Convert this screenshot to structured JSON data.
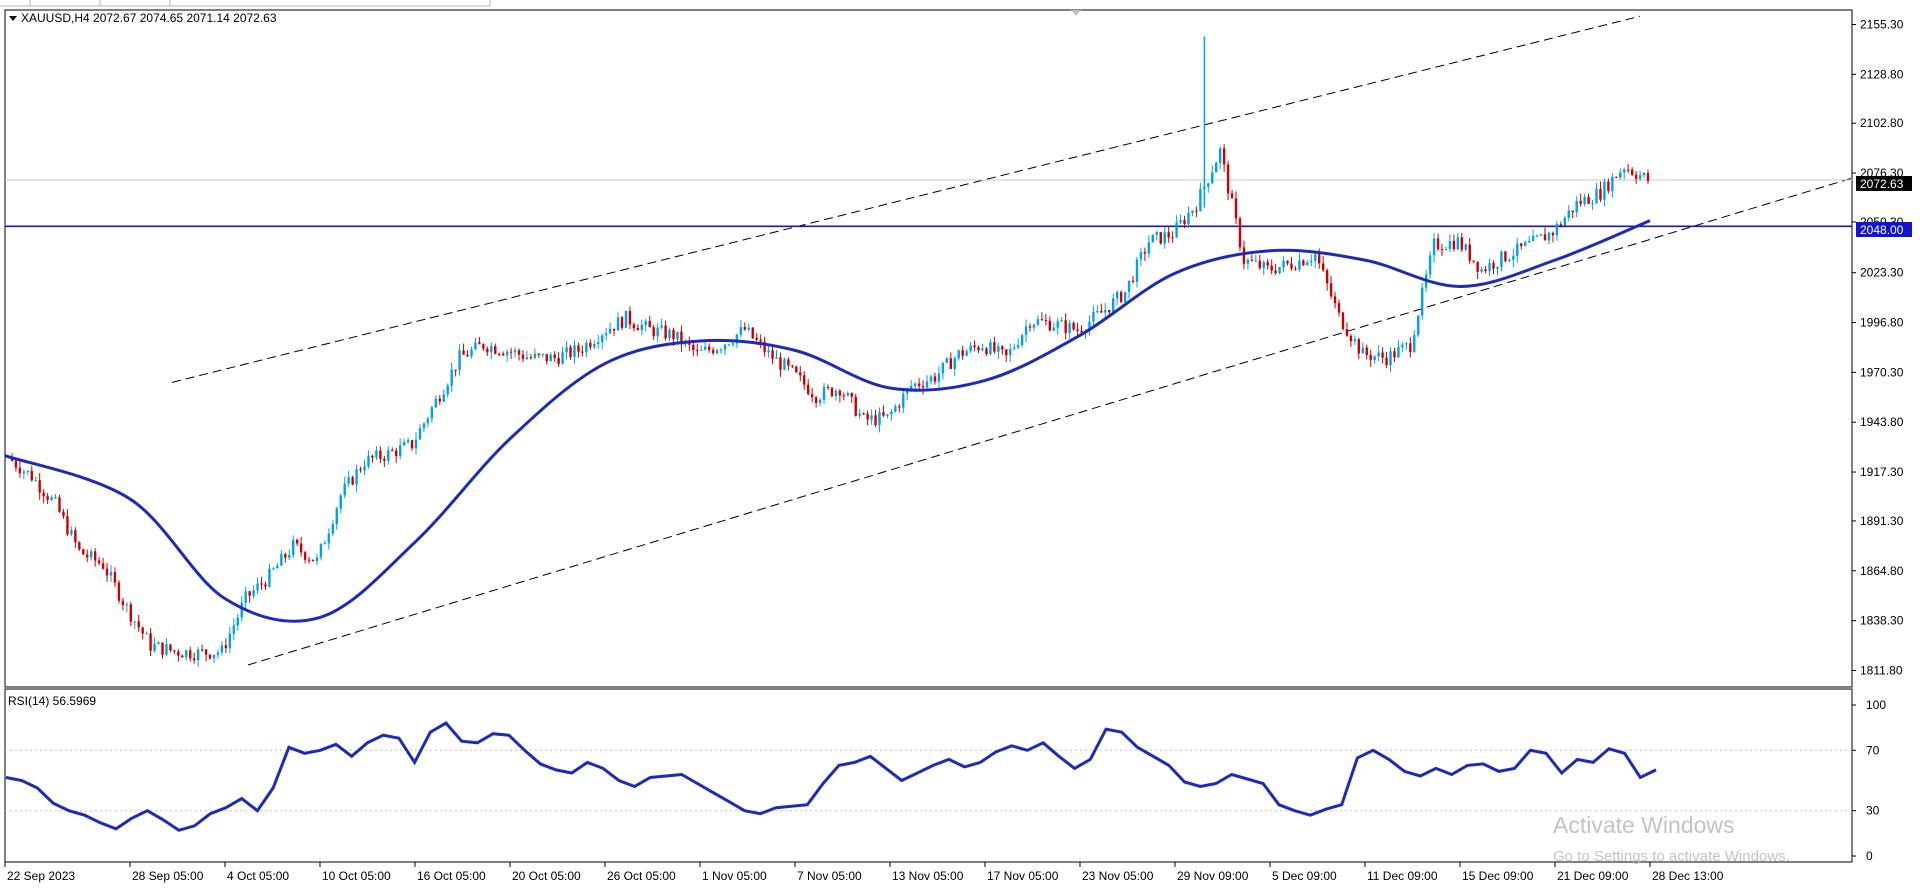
{
  "window": {
    "symbol_header": "XAUUSD,H4  2072.67 2074.65 2071.14 2072.63",
    "rsi_header": "RSI(14) 56.5969"
  },
  "price_axis": {
    "ticks": [
      "2155.30",
      "2128.80",
      "2102.80",
      "2076.30",
      "2050.30",
      "2023.30",
      "1996.80",
      "1970.30",
      "1943.80",
      "1917.30",
      "1891.30",
      "1864.80",
      "1838.30",
      "1811.80"
    ],
    "current_price_label": "2072.63",
    "level_label": "2048.00"
  },
  "rsi_axis": {
    "ticks": [
      "100",
      "70",
      "30",
      "0"
    ]
  },
  "time_axis": {
    "labels": [
      "22 Sep 2023",
      "28 Sep 05:00",
      "4 Oct 05:00",
      "10 Oct 05:00",
      "16 Oct 05:00",
      "20 Oct 05:00",
      "26 Oct 05:00",
      "1 Nov 05:00",
      "7 Nov 05:00",
      "13 Nov 05:00",
      "17 Nov 05:00",
      "23 Nov 05:00",
      "29 Nov 09:00",
      "5 Dec 09:00",
      "11 Dec 09:00",
      "15 Dec 09:00",
      "21 Dec 09:00",
      "28 Dec 13:00"
    ]
  },
  "watermark": {
    "line1": "Activate Windows",
    "line2": "Go to Settings to activate Windows."
  },
  "colors": {
    "bull": "#00A2E8",
    "bear": "#CC0000",
    "ma": "#1C2BB8",
    "level": "#1414C8",
    "rsi": "#1C2BB8",
    "channel": "#000000"
  },
  "chart_data": {
    "type": "candlestick",
    "symbol": "XAUUSD",
    "timeframe": "H4",
    "ylim": [
      1803,
      2163
    ],
    "horizontal_level": 2048.0,
    "last_price": 2072.63,
    "ohlc_last": {
      "open": 2072.67,
      "high": 2074.65,
      "low": 2071.14,
      "close": 2072.63
    },
    "price_path": [
      [
        "22 Sep 2023",
        1925
      ],
      [
        "25 Sep",
        1915
      ],
      [
        "26 Sep",
        1900
      ],
      [
        "27 Sep",
        1875
      ],
      [
        "28 Sep 05:00",
        1868
      ],
      [
        "29 Sep",
        1845
      ],
      [
        "1 Oct",
        1825
      ],
      [
        "2 Oct",
        1822
      ],
      [
        "3 Oct",
        1821
      ],
      [
        "4 Oct 05:00",
        1822
      ],
      [
        "5 Oct",
        1850
      ],
      [
        "6 Oct",
        1862
      ],
      [
        "9 Oct",
        1878
      ],
      [
        "10 Oct 05:00",
        1870
      ],
      [
        "11 Oct",
        1905
      ],
      [
        "12 Oct",
        1923
      ],
      [
        "13 Oct",
        1927
      ],
      [
        "16 Oct 05:00",
        1932
      ],
      [
        "17 Oct",
        1955
      ],
      [
        "18 Oct",
        1978
      ],
      [
        "19 Oct",
        1985
      ],
      [
        "20 Oct 05:00",
        1982
      ],
      [
        "23 Oct",
        1978
      ],
      [
        "24 Oct",
        1978
      ],
      [
        "25 Oct",
        1982
      ],
      [
        "26 Oct 05:00",
        1992
      ],
      [
        "27 Oct",
        1999
      ],
      [
        "30 Oct",
        1993
      ],
      [
        "31 Oct",
        1990
      ],
      [
        "1 Nov 05:00",
        1980
      ],
      [
        "2 Nov",
        1985
      ],
      [
        "3 Nov",
        1993
      ],
      [
        "6 Nov",
        1980
      ],
      [
        "7 Nov 05:00",
        1970
      ],
      [
        "8 Nov",
        1958
      ],
      [
        "9 Nov",
        1962
      ],
      [
        "10 Nov",
        1945
      ],
      [
        "13 Nov 05:00",
        1946
      ],
      [
        "14 Nov",
        1963
      ],
      [
        "15 Nov",
        1968
      ],
      [
        "16 Nov",
        1980
      ],
      [
        "17 Nov 05:00",
        1985
      ],
      [
        "20 Nov",
        1978
      ],
      [
        "21 Nov",
        1998
      ],
      [
        "22 Nov",
        1996
      ],
      [
        "23 Nov 05:00",
        1993
      ],
      [
        "24 Nov",
        2002
      ],
      [
        "27 Nov",
        2013
      ],
      [
        "28 Nov",
        2040
      ],
      [
        "29 Nov 09:00",
        2044
      ],
      [
        "1 Dec",
        2060
      ],
      [
        "4 Dec",
        2088
      ],
      [
        "4 Dec b",
        2030
      ],
      [
        "5 Dec 09:00",
        2025
      ],
      [
        "6 Dec",
        2028
      ],
      [
        "7 Dec",
        2033
      ],
      [
        "8 Dec",
        2000
      ],
      [
        "11 Dec 09:00",
        1980
      ],
      [
        "12 Dec",
        1978
      ],
      [
        "13 Dec",
        1985
      ],
      [
        "14 Dec",
        2038
      ],
      [
        "15 Dec 09:00",
        2040
      ],
      [
        "18 Dec",
        2025
      ],
      [
        "19 Dec",
        2032
      ],
      [
        "20 Dec",
        2038
      ],
      [
        "21 Dec 09:00",
        2045
      ],
      [
        "22 Dec",
        2060
      ],
      [
        "26 Dec",
        2066
      ],
      [
        "27 Dec",
        2080
      ],
      [
        "28 Dec 13:00",
        2072.63
      ]
    ],
    "moving_average": [
      [
        "22 Sep 2023",
        1926
      ],
      [
        "28 Sep 05:00",
        1903
      ],
      [
        "4 Oct 05:00",
        1850
      ],
      [
        "10 Oct 05:00",
        1840
      ],
      [
        "16 Oct 05:00",
        1880
      ],
      [
        "20 Oct 05:00",
        1935
      ],
      [
        "26 Oct 05:00",
        1975
      ],
      [
        "1 Nov 05:00",
        1987
      ],
      [
        "7 Nov 05:00",
        1982
      ],
      [
        "13 Nov 05:00",
        1962
      ],
      [
        "17 Nov 05:00",
        1966
      ],
      [
        "23 Nov 05:00",
        1990
      ],
      [
        "29 Nov 09:00",
        2023
      ],
      [
        "5 Dec 09:00",
        2035
      ],
      [
        "11 Dec 09:00",
        2030
      ],
      [
        "15 Dec 09:00",
        2016
      ],
      [
        "21 Dec 09:00",
        2030
      ],
      [
        "28 Dec 13:00",
        2051
      ]
    ],
    "channel_upper": [
      [
        "4 Oct 05:00",
        1972
      ],
      [
        "28 Dec 13:00",
        2161
      ]
    ],
    "channel_lower": [
      [
        "4 Oct 05:00",
        1811
      ],
      [
        "28 Dec 13:00",
        2041
      ]
    ],
    "rsi": {
      "period": 14,
      "last": 56.5969,
      "ylim": [
        0,
        100
      ],
      "levels": [
        70,
        30
      ],
      "values": [
        52,
        50,
        45,
        35,
        30,
        27,
        22,
        18,
        25,
        30,
        24,
        17,
        20,
        28,
        32,
        38,
        30,
        45,
        72,
        68,
        70,
        74,
        66,
        75,
        80,
        78,
        62,
        82,
        88,
        76,
        75,
        81,
        80,
        70,
        61,
        57,
        55,
        62,
        58,
        50,
        46,
        52,
        53,
        54,
        48,
        42,
        36,
        30,
        28,
        32,
        33,
        34,
        48,
        60,
        62,
        66,
        58,
        50,
        55,
        60,
        64,
        59,
        62,
        69,
        73,
        70,
        75,
        66,
        58,
        64,
        84,
        82,
        72,
        66,
        60,
        49,
        46,
        48,
        54,
        51,
        48,
        34,
        30,
        27,
        31,
        34,
        65,
        70,
        64,
        56,
        53,
        58,
        54,
        60,
        61,
        56,
        58,
        70,
        68,
        55,
        64,
        62,
        71,
        68,
        52,
        57
      ]
    }
  }
}
